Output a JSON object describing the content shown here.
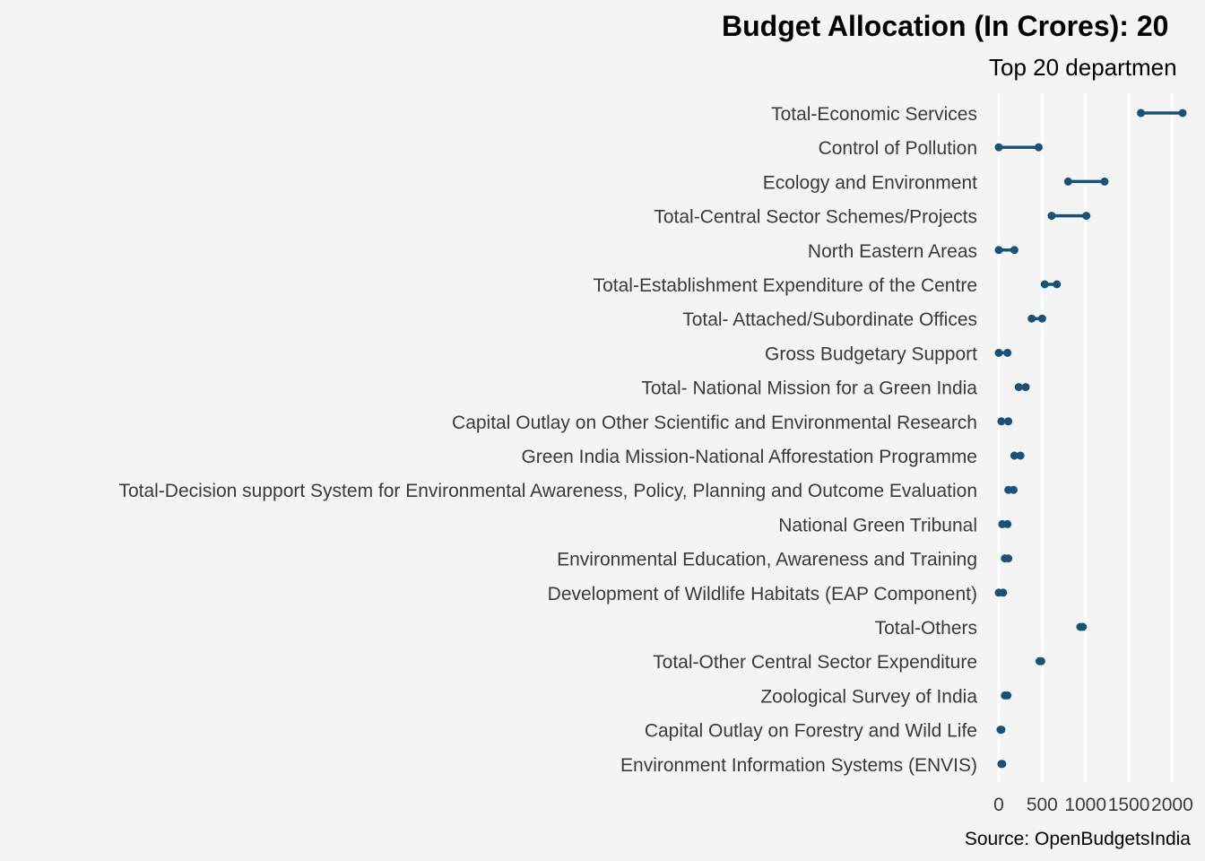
{
  "chart_data": {
    "type": "dumbbell",
    "title": "Budget Allocation (In Crores): 20",
    "subtitle": "Top 20 departmen",
    "caption": "Source: OpenBudgetsIndia",
    "xlabel": "",
    "ylabel": "",
    "xlim": [
      0,
      2150
    ],
    "xticks": [
      0,
      500,
      1000,
      1500,
      2000
    ],
    "xtick_labels": [
      "0",
      "500",
      "1000",
      "1500",
      "2000"
    ],
    "grid": true,
    "point_color": "#1a5276",
    "categories": [
      "Total-Economic Services",
      "Control of Pollution",
      "Ecology and Environment",
      "Total-Central Sector Schemes/Projects",
      "North Eastern Areas",
      "Total-Establishment Expenditure of the Centre",
      "Total- Attached/Subordinate Offices",
      "Gross Budgetary Support",
      "Total- National Mission for a Green India",
      "Capital Outlay on Other Scientific and Environmental Research",
      "Green India Mission-National Afforestation Programme",
      "Total-Decision support System for Environmental Awareness, Policy, Planning and Outcome Evaluation",
      "National Green Tribunal",
      "Environmental Education, Awareness and Training",
      "Development of Wildlife Habitats (EAP Component)",
      "Total-Others",
      "Total-Other Central Sector Expenditure",
      "Zoological Survey of India",
      "Capital Outlay on Forestry and Wild Life",
      "Environment Information Systems (ENVIS)"
    ],
    "series": [
      {
        "values": [
          1640,
          0,
          800,
          610,
          0,
          530,
          380,
          0,
          230,
          30,
          180,
          110,
          40,
          70,
          0,
          940,
          470,
          70,
          20,
          30
        ]
      },
      {
        "values": [
          2120,
          460,
          1220,
          1010,
          180,
          670,
          500,
          100,
          310,
          110,
          250,
          170,
          100,
          110,
          50,
          970,
          490,
          100,
          30,
          40
        ]
      }
    ]
  }
}
